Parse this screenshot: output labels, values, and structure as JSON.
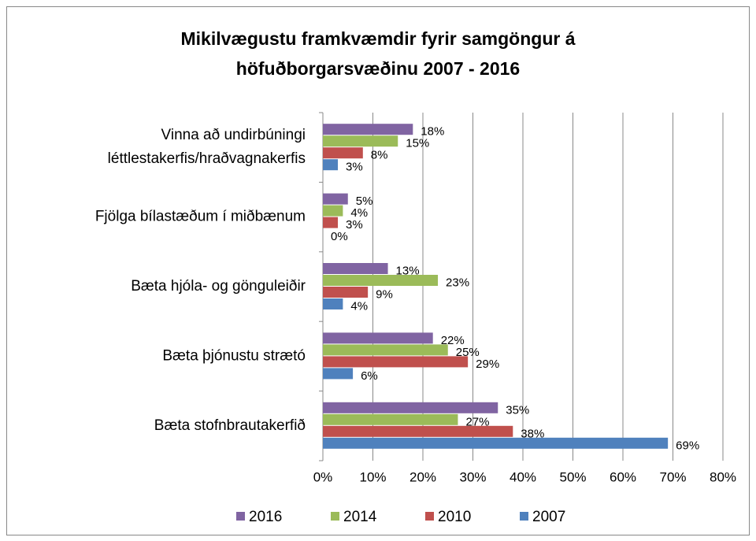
{
  "chart_data": {
    "type": "hbar",
    "title": "Mikilvægustu framkvæmdir  fyrir samgöngur á\nhöfuðborgarsvæðinu  2007 - 2016",
    "categories": [
      "Vinna að undirbúningi\nléttlestakerfis/hraðvagnakerfis",
      "Fjölga bílastæðum í miðbænum",
      "Bæta hjóla- og gönguleiðir",
      "Bæta þjónustu strætó",
      "Bæta stofnbrautakerfið"
    ],
    "series": [
      {
        "name": "2016",
        "color": "#8064a2",
        "values": [
          18,
          5,
          13,
          22,
          35
        ],
        "value_labels": [
          "18%",
          "5%",
          "13%",
          "22%",
          "35%"
        ]
      },
      {
        "name": "2014",
        "color": "#9bbb59",
        "values": [
          15,
          4,
          23,
          25,
          27
        ],
        "value_labels": [
          "15%",
          "4%",
          "23%",
          "25%",
          "27%"
        ]
      },
      {
        "name": "2010",
        "color": "#c0504d",
        "values": [
          8,
          3,
          9,
          29,
          38
        ],
        "value_labels": [
          "8%",
          "3%",
          "9%",
          "29%",
          "38%"
        ]
      },
      {
        "name": "2007",
        "color": "#4f81bd",
        "values": [
          3,
          0,
          4,
          6,
          69
        ],
        "value_labels": [
          "3%",
          "0%",
          "4%",
          "6%",
          "69%"
        ]
      }
    ],
    "xlim": [
      0,
      80
    ],
    "xticks": [
      {
        "value": 0,
        "label": "0%"
      },
      {
        "value": 10,
        "label": "10%"
      },
      {
        "value": 20,
        "label": "20%"
      },
      {
        "value": 30,
        "label": "30%"
      },
      {
        "value": 40,
        "label": "40%"
      },
      {
        "value": 50,
        "label": "50%"
      },
      {
        "value": 60,
        "label": "60%"
      },
      {
        "value": 70,
        "label": "70%"
      },
      {
        "value": 80,
        "label": "80%"
      }
    ],
    "grid": true,
    "legend": "bottom"
  }
}
